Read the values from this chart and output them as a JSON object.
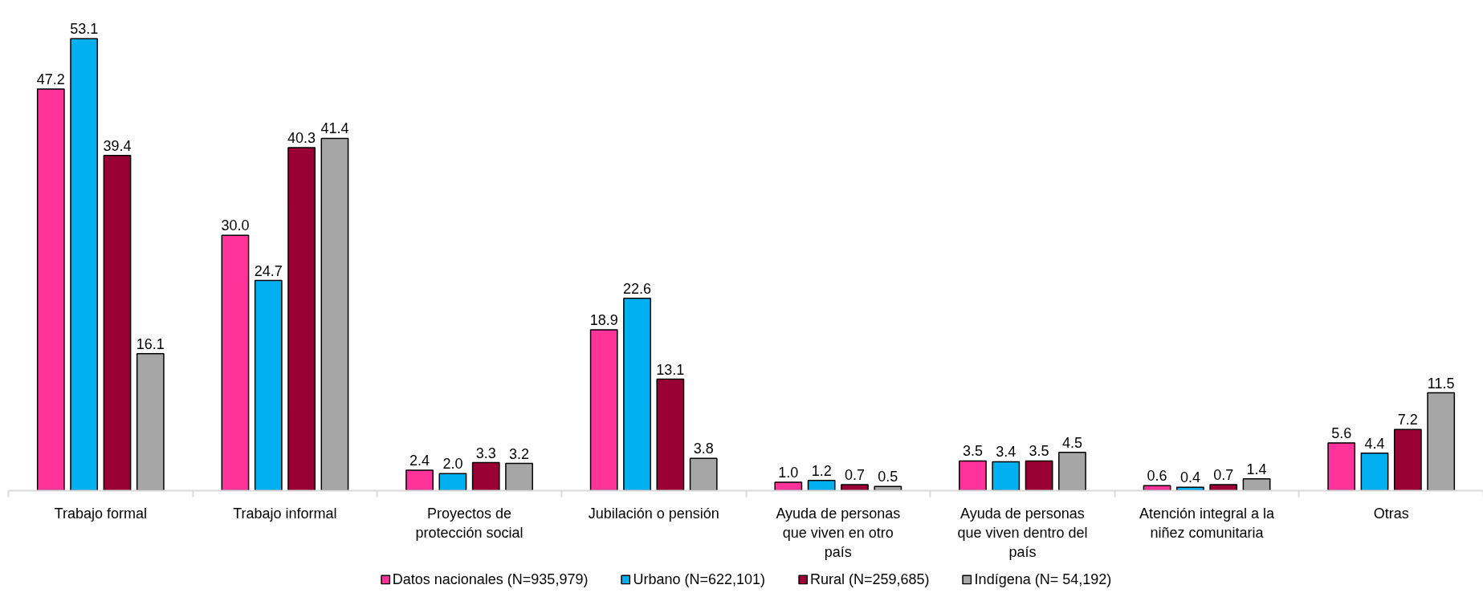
{
  "chart_data": {
    "type": "bar",
    "categories": [
      "Trabajo formal",
      "Trabajo informal",
      "Proyectos de\nprotección social",
      "Jubilación o pensión",
      "Ayuda de personas\nque viven en otro\npaís",
      "Ayuda de personas\nque viven dentro del\npaís",
      "Atención integral a la\nniñez comunitaria",
      "Otras"
    ],
    "series": [
      {
        "name": "Datos nacionales (N=935,979)",
        "color": "#ff3399",
        "values": [
          47.2,
          30.0,
          2.4,
          18.9,
          1.0,
          3.5,
          0.6,
          5.6
        ],
        "value_labels": [
          "47.2",
          "30.0",
          "2.4",
          "18.9",
          "1.0",
          "3.5",
          "0.6",
          "5.6"
        ]
      },
      {
        "name": "Urbano (N=622,101)",
        "color": "#00b0f0",
        "values": [
          53.1,
          24.7,
          2.0,
          22.6,
          1.2,
          3.4,
          0.4,
          4.4
        ],
        "value_labels": [
          "53.1",
          "24.7",
          "2.0",
          "22.6",
          "1.2",
          "3.4",
          "0.4",
          "4.4"
        ]
      },
      {
        "name": "Rural (N=259,685)",
        "color": "#990033",
        "values": [
          39.4,
          40.3,
          3.3,
          13.1,
          0.7,
          3.5,
          0.7,
          7.2
        ],
        "value_labels": [
          "39.4",
          "40.3",
          "3.3",
          "13.1",
          "0.7",
          "3.5",
          "0.7",
          "7.2"
        ]
      },
      {
        "name": "Indígena (N= 54,192)",
        "color": "#a6a6a6",
        "values": [
          16.1,
          41.4,
          3.2,
          3.8,
          0.5,
          4.5,
          1.4,
          11.5
        ],
        "value_labels": [
          "16.1",
          "41.4",
          "3.2",
          "3.8",
          "0.5",
          "4.5",
          "1.4",
          "11.5"
        ]
      }
    ],
    "legend": "bottom",
    "grid": false
  }
}
